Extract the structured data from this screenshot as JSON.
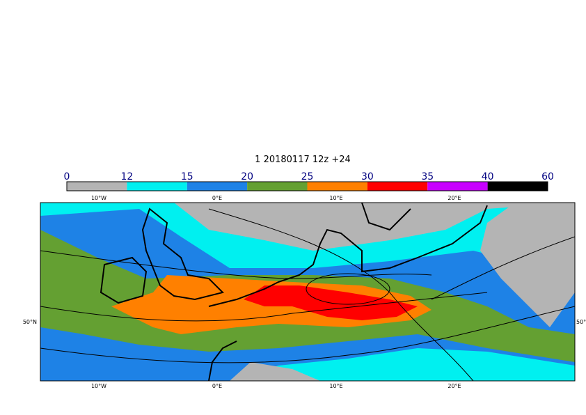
{
  "title": "1 20180117 12z +24",
  "colorbar": {
    "levels": [
      0,
      12,
      15,
      20,
      25,
      30,
      35,
      40,
      60
    ],
    "colors": [
      "#b4b4b4",
      "#00f0f0",
      "#1e82e6",
      "#64a032",
      "#ff8000",
      "#ff0000",
      "#c800ff",
      "#000000"
    ]
  },
  "map": {
    "lon_labels": [
      "10°W",
      "0°E",
      "10°E",
      "20°E"
    ],
    "lat_labels": [
      "50°N"
    ]
  }
}
